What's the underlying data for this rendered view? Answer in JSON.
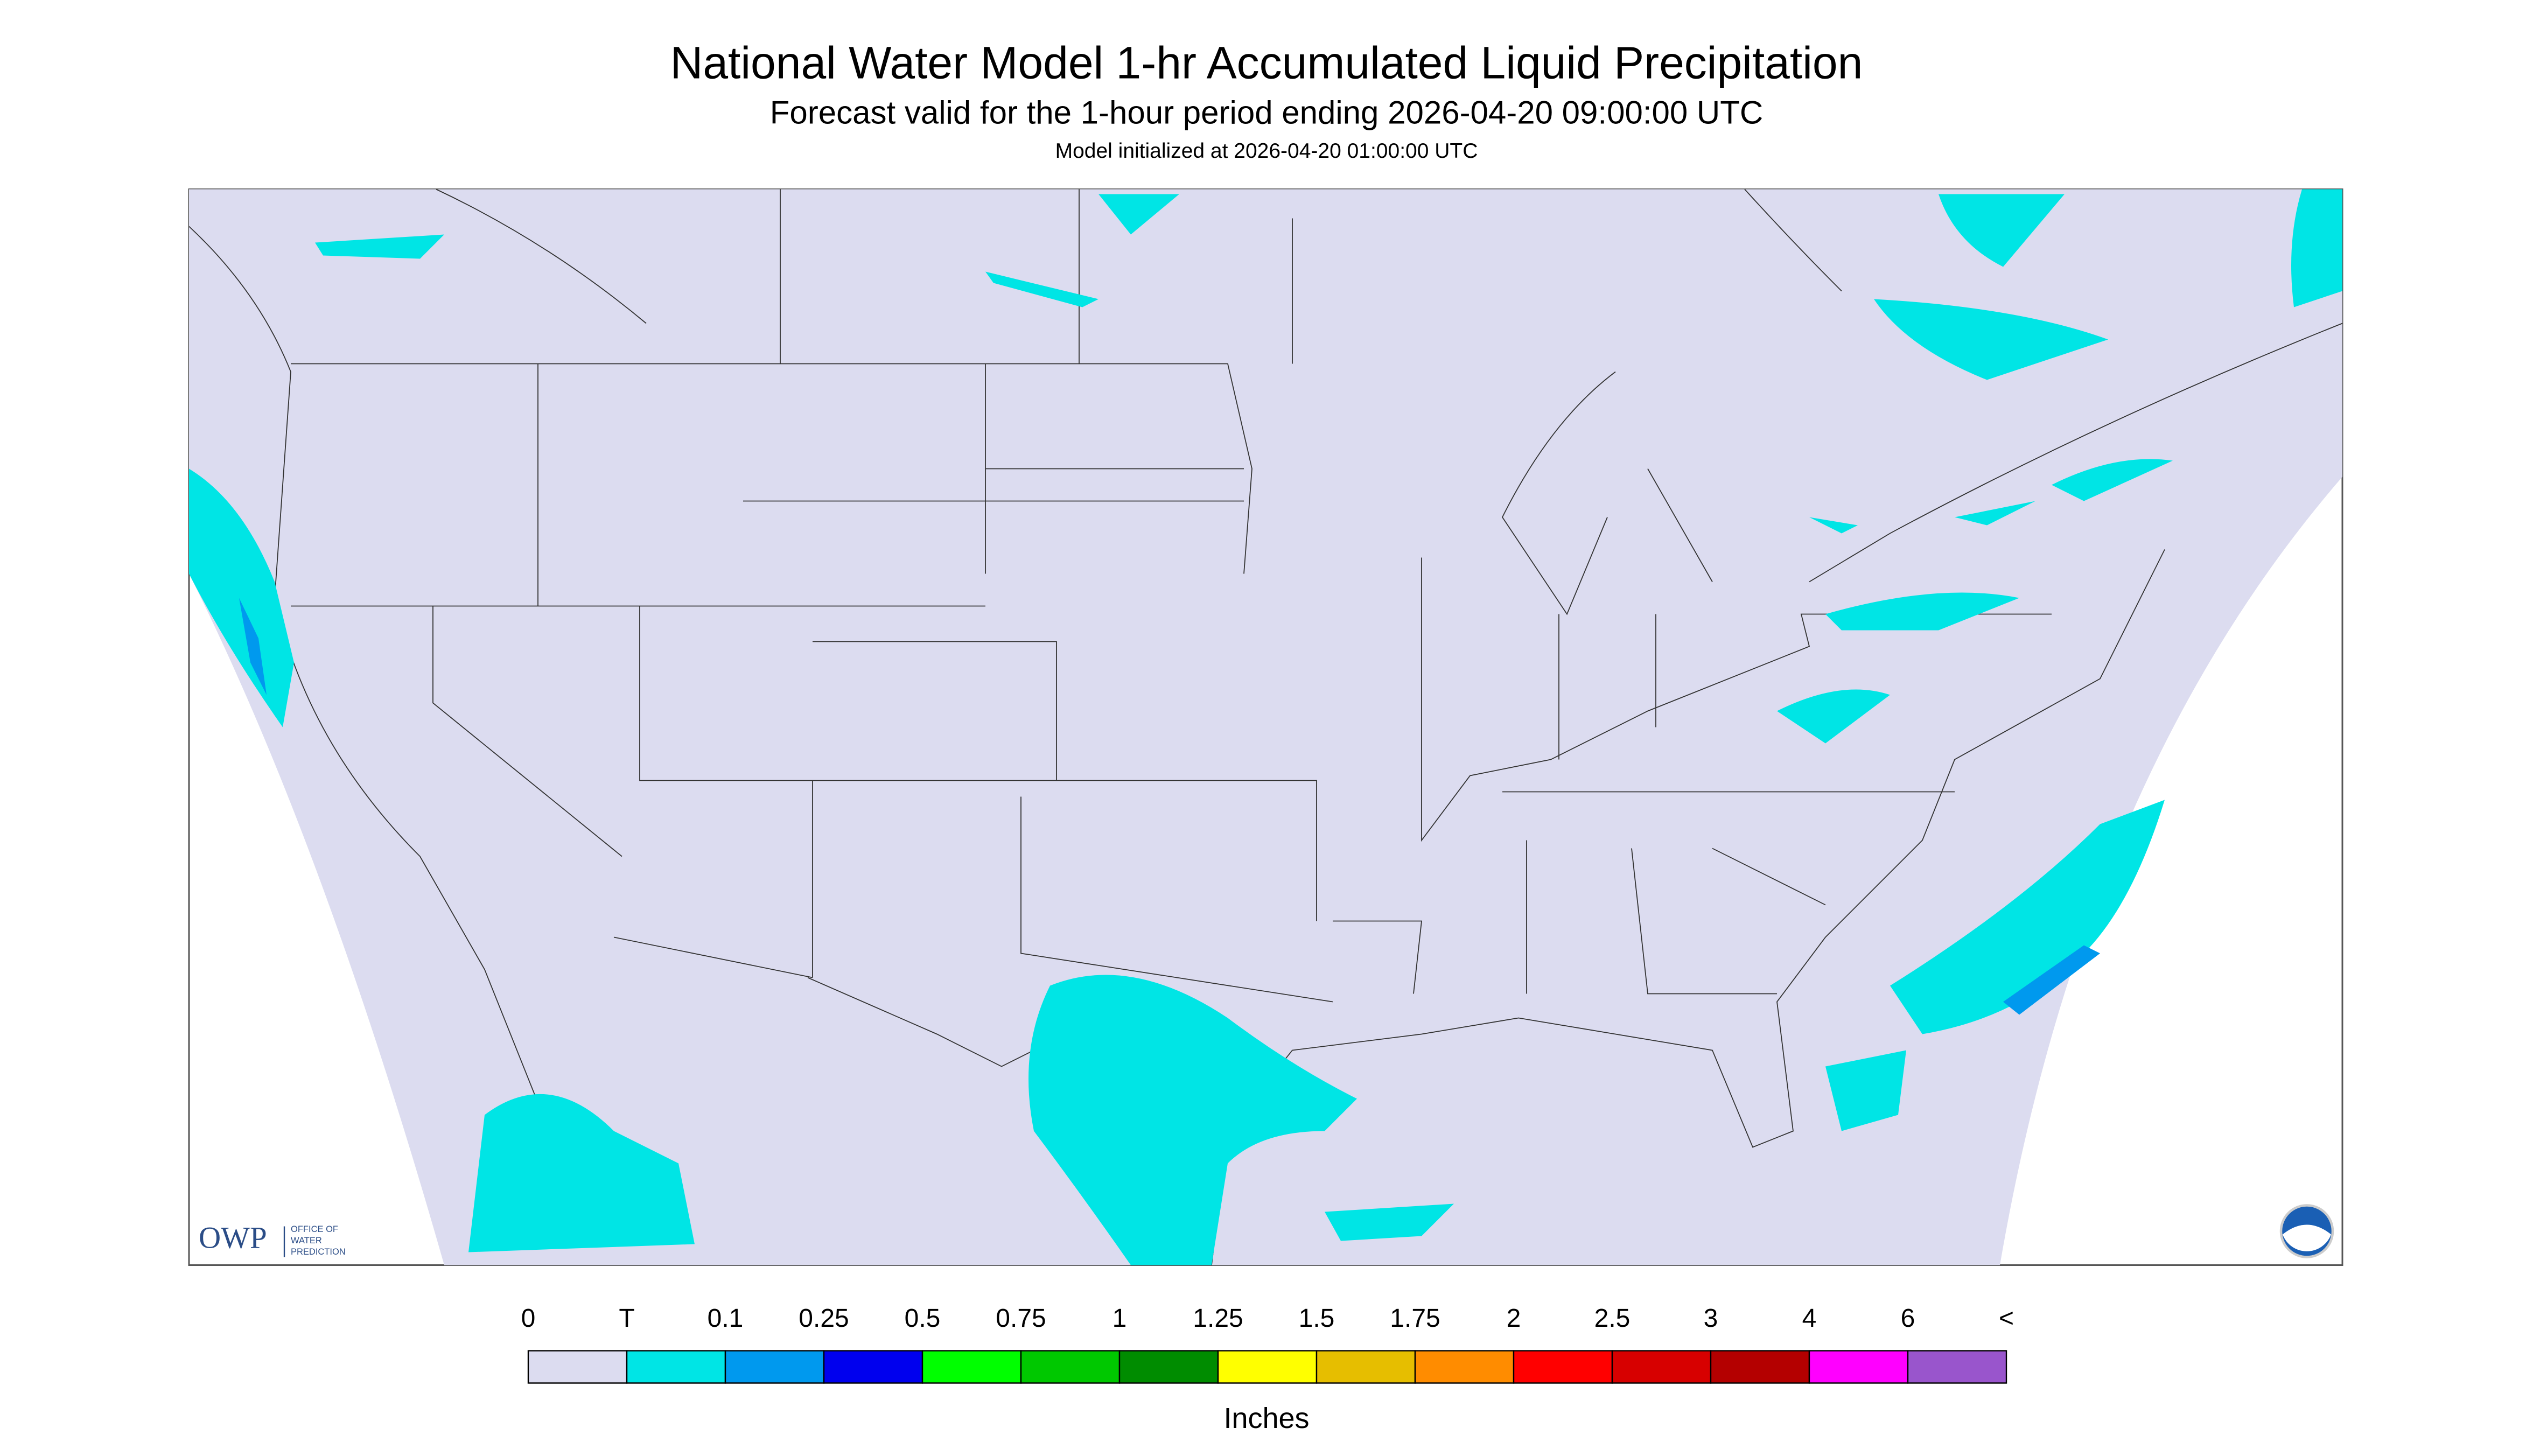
{
  "header": {
    "title": "National Water Model 1-hr Accumulated Liquid Precipitation",
    "subtitle": "Forecast valid for the 1-hour period ending 2026-04-20 09:00:00 UTC",
    "note": "Model initialized at 2026-04-20 01:00:00 UTC"
  },
  "logo": {
    "abbreviation": "OWP",
    "office": [
      "OFFICE OF",
      "WATER",
      "PREDICTION"
    ]
  },
  "legend": {
    "labels": [
      "0",
      "T",
      "0.1",
      "0.25",
      "0.5",
      "0.75",
      "1",
      "1.25",
      "1.5",
      "1.75",
      "2",
      "2.5",
      "3",
      "4",
      "6",
      "<"
    ],
    "colors": [
      "#dcdcf0",
      "#00e5e5",
      "#0099ee",
      "#0000ee",
      "#00ff00",
      "#00c800",
      "#008c00",
      "#ffff00",
      "#e6be00",
      "#ff8c00",
      "#ff0000",
      "#d70000",
      "#b40000",
      "#ff00ff",
      "#9955cc"
    ],
    "unit": "Inches"
  }
}
